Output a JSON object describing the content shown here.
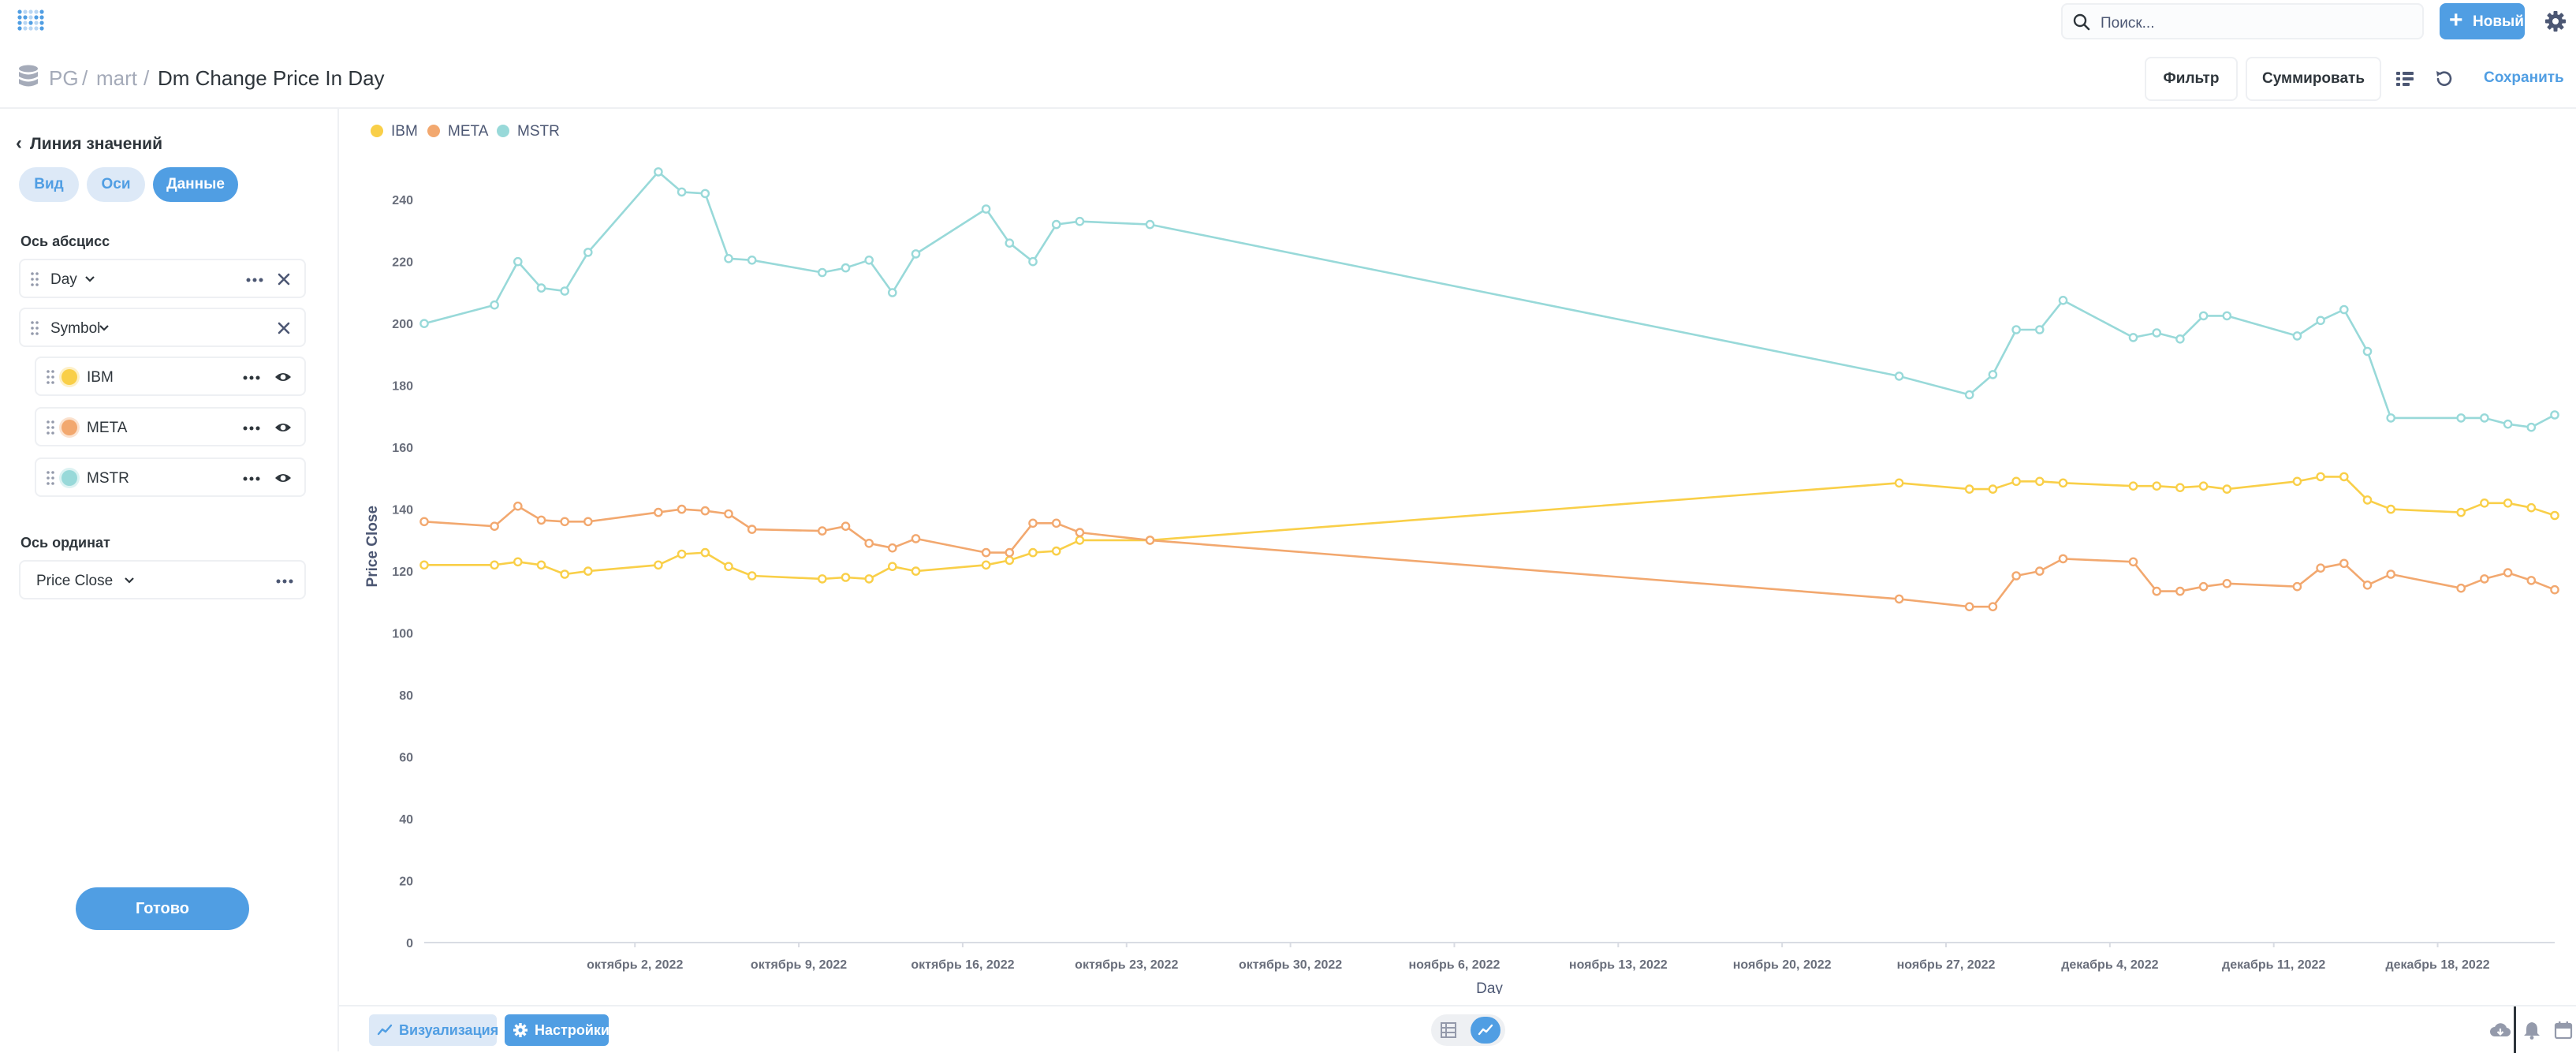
{
  "topbar": {
    "search_placeholder": "Поиск...",
    "new_label": "Новый"
  },
  "breadcrumb": {
    "db": "PG",
    "schema": "mart",
    "sep": "/",
    "title": "Dm Change Price In Day"
  },
  "toolbar": {
    "filter": "Фильтр",
    "summarize": "Суммировать",
    "save": "Сохранить"
  },
  "sidebar": {
    "back_label": "Линия значений",
    "tabs": [
      {
        "label": "Вид"
      },
      {
        "label": "Оси"
      },
      {
        "label": "Данные"
      }
    ],
    "x_axis_title": "Ось абсцисс",
    "x_field": "Day",
    "breakout_field": "Symbol",
    "series": [
      {
        "label": "IBM",
        "color": "#f9cf48"
      },
      {
        "label": "META",
        "color": "#f2a86f"
      },
      {
        "label": "MSTR",
        "color": "#98d9d9"
      }
    ],
    "y_axis_title": "Ось ординат",
    "y_field": "Price Close",
    "done_label": "Готово"
  },
  "footer": {
    "viz_label": "Визуализация",
    "settings_label": "Настройки"
  },
  "chart_data": {
    "type": "line",
    "xlabel": "Day",
    "ylabel": "Price Close",
    "ylim": [
      0,
      250
    ],
    "yticks": [
      0,
      20,
      40,
      60,
      80,
      100,
      120,
      140,
      160,
      180,
      200,
      220,
      240
    ],
    "xlim": [
      "2022-09-23",
      "2022-12-23"
    ],
    "xticks": [
      {
        "date": "2022-10-02",
        "label": "октябрь 2, 2022"
      },
      {
        "date": "2022-10-09",
        "label": "октябрь 9, 2022"
      },
      {
        "date": "2022-10-16",
        "label": "октябрь 16, 2022"
      },
      {
        "date": "2022-10-23",
        "label": "октябрь 23, 2022"
      },
      {
        "date": "2022-10-30",
        "label": "октябрь 30, 2022"
      },
      {
        "date": "2022-11-06",
        "label": "ноябрь 6, 2022"
      },
      {
        "date": "2022-11-13",
        "label": "ноябрь 13, 2022"
      },
      {
        "date": "2022-11-20",
        "label": "ноябрь 20, 2022"
      },
      {
        "date": "2022-11-27",
        "label": "ноябрь 27, 2022"
      },
      {
        "date": "2022-12-04",
        "label": "декабрь 4, 2022"
      },
      {
        "date": "2022-12-11",
        "label": "декабрь 11, 2022"
      },
      {
        "date": "2022-12-18",
        "label": "декабрь 18, 2022"
      }
    ],
    "legend_position": "top-left",
    "grid": false,
    "x": [
      "2022-09-23",
      "2022-09-26",
      "2022-09-27",
      "2022-09-28",
      "2022-09-29",
      "2022-09-30",
      "2022-10-03",
      "2022-10-04",
      "2022-10-05",
      "2022-10-06",
      "2022-10-07",
      "2022-10-10",
      "2022-10-11",
      "2022-10-12",
      "2022-10-13",
      "2022-10-14",
      "2022-10-17",
      "2022-10-18",
      "2022-10-19",
      "2022-10-20",
      "2022-10-21",
      "2022-10-24",
      "2022-11-25",
      "2022-11-28",
      "2022-11-29",
      "2022-11-30",
      "2022-12-01",
      "2022-12-02",
      "2022-12-05",
      "2022-12-06",
      "2022-12-07",
      "2022-12-08",
      "2022-12-09",
      "2022-12-12",
      "2022-12-13",
      "2022-12-14",
      "2022-12-15",
      "2022-12-16",
      "2022-12-19",
      "2022-12-20",
      "2022-12-21",
      "2022-12-22",
      "2022-12-23"
    ],
    "series": [
      {
        "name": "IBM",
        "color": "#f9cf48",
        "values": [
          122,
          122,
          123,
          122,
          119,
          120,
          122,
          125.5,
          126,
          121.5,
          118.5,
          117.5,
          118,
          117.5,
          121.5,
          120,
          122,
          123.5,
          126,
          126.5,
          130,
          130,
          148.5,
          146.5,
          146.5,
          149,
          149,
          148.5,
          147.5,
          147.5,
          147,
          147.5,
          146.5,
          149,
          150.5,
          150.5,
          143,
          140,
          139,
          142,
          142,
          140.5,
          138
        ]
      },
      {
        "name": "META",
        "color": "#f2a86f",
        "values": [
          136,
          134.5,
          141,
          136.5,
          136,
          136,
          139,
          140,
          139.5,
          138.5,
          133.5,
          133,
          134.5,
          129,
          127.5,
          130.5,
          126,
          126,
          135.5,
          135.5,
          132.5,
          130,
          111,
          108.5,
          108.5,
          118.5,
          120,
          124,
          123,
          113.5,
          113.5,
          115,
          116,
          115,
          121,
          122.5,
          115.5,
          119,
          114.5,
          117.5,
          119.5,
          117,
          114
        ]
      },
      {
        "name": "MSTR",
        "color": "#98d9d9",
        "values": [
          200,
          206,
          220,
          211.5,
          210.5,
          223,
          249,
          242.5,
          242,
          221,
          220.5,
          216.5,
          218,
          220.5,
          210,
          222.5,
          237,
          226,
          220,
          232,
          233,
          232,
          183,
          177,
          183.5,
          198,
          198,
          207.5,
          195.5,
          197,
          195,
          202.5,
          202.5,
          196,
          201,
          204.5,
          191,
          169.5,
          169.5,
          169.5,
          167.5,
          166.5,
          170.5
        ]
      }
    ]
  }
}
